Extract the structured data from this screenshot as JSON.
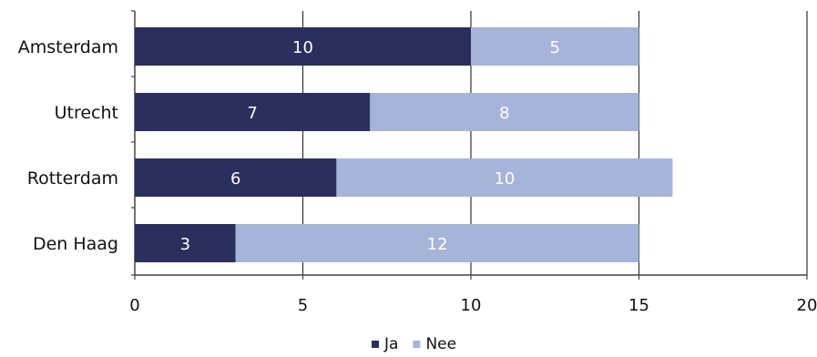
{
  "chart_data": {
    "type": "bar",
    "orientation": "horizontal",
    "stacked": true,
    "title": "",
    "xlabel": "",
    "ylabel": "",
    "categories": [
      "Amsterdam",
      "Utrecht",
      "Rotterdam",
      "Den Haag"
    ],
    "series": [
      {
        "name": "Ja",
        "values": [
          10,
          7,
          6,
          3
        ],
        "color": "#2b2f5e"
      },
      {
        "name": "Nee",
        "values": [
          5,
          8,
          10,
          12
        ],
        "color": "#a6b4d9"
      }
    ],
    "xlim": [
      0,
      20
    ],
    "xticks": [
      0,
      5,
      10,
      15,
      20
    ],
    "grid": "vertical",
    "legend": "bottom"
  }
}
